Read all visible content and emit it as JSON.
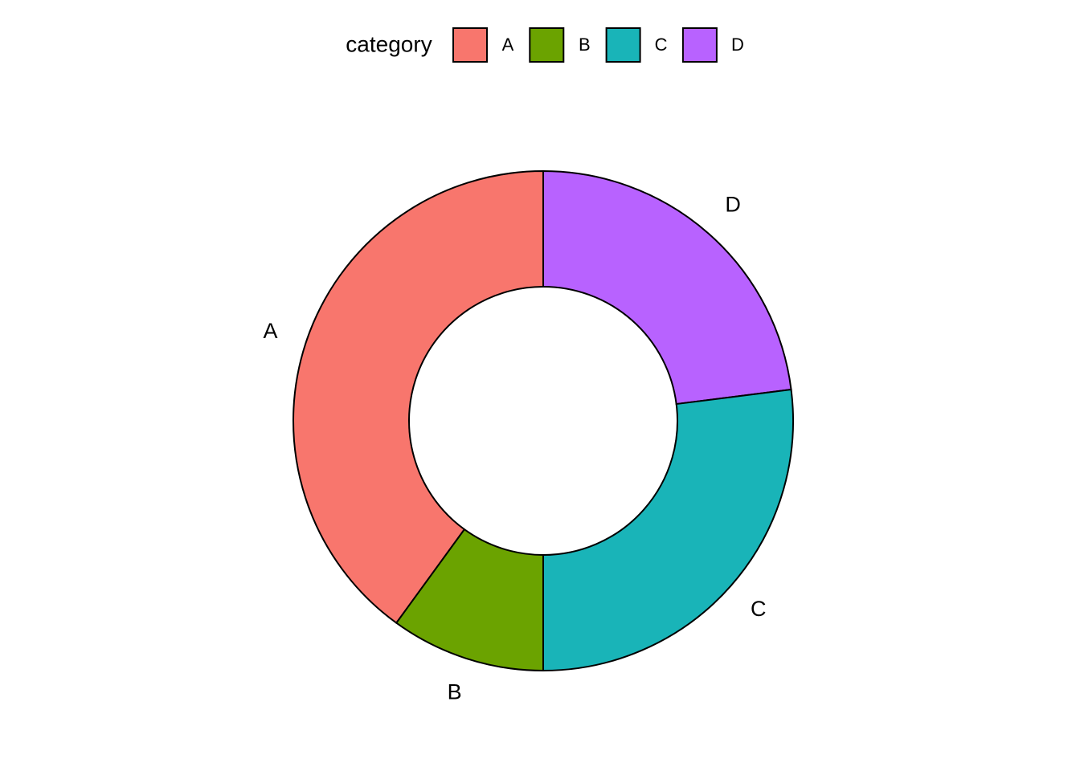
{
  "chart_data": {
    "type": "pie",
    "legend_title": "category",
    "categories": [
      "A",
      "B",
      "C",
      "D"
    ],
    "values": [
      40,
      10,
      27,
      23
    ],
    "colors": [
      "#f8766d",
      "#6ba300",
      "#19b4b8",
      "#b862ff"
    ],
    "legend": "top"
  }
}
